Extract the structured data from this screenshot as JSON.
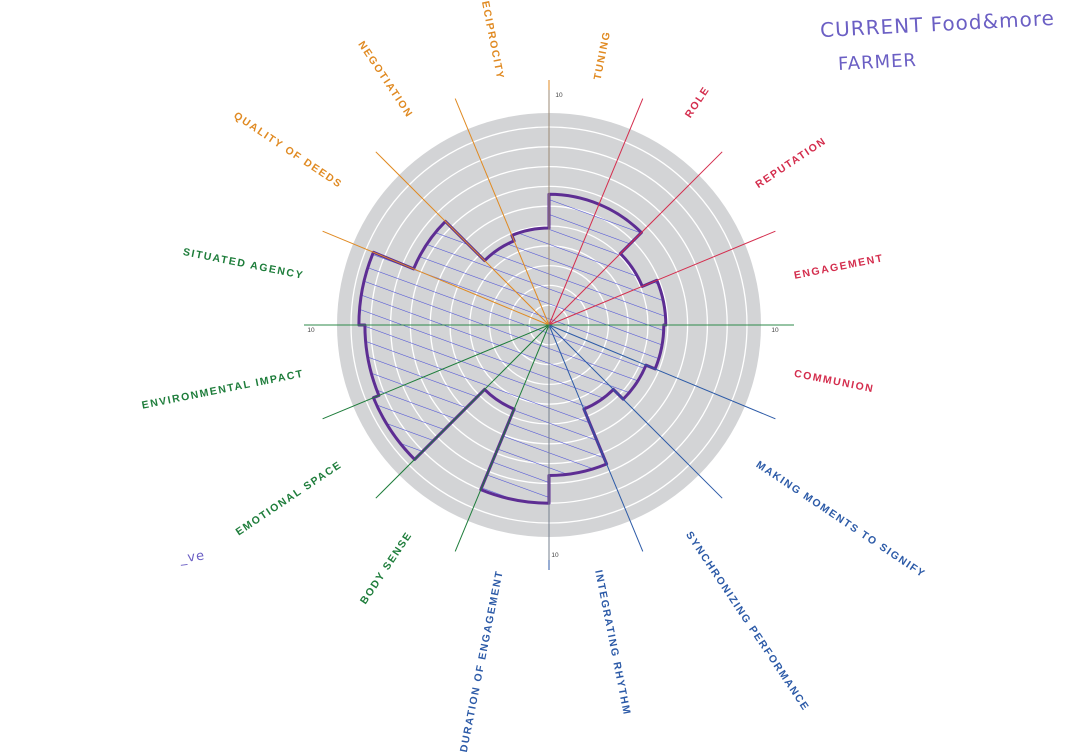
{
  "handwritten": {
    "title_line1": "CURRENT Food&more",
    "title_line2": "FARMER",
    "side_note": "_ve"
  },
  "wheel": {
    "scale_max": 10,
    "scale_label": "10",
    "colors": {
      "disc": "#d3d4d6",
      "ring": "#ffffff",
      "outline": "#5d2d93",
      "hatch": "#4b4fd6",
      "orange": "#e08a22",
      "red": "#d42d4d",
      "blue": "#2c5aa7",
      "green": "#1e7d3b"
    },
    "dimensions": [
      {
        "label": "TUNING",
        "color": "orange",
        "score": 6.6
      },
      {
        "label": "ROLE",
        "color": "red",
        "score": 6.6
      },
      {
        "label": "REPUTATION",
        "color": "red",
        "score": 5.1
      },
      {
        "label": "ENGAGEMENT",
        "color": "red",
        "score": 5.9
      },
      {
        "label": "COMMUNION",
        "color": "red",
        "score": 5.8
      },
      {
        "label": "MAKING MOMENTS TO SIGNIFY",
        "color": "blue",
        "score": 5.3
      },
      {
        "label": "SYNCHRONIZING PERFORMANCE",
        "color": "blue",
        "score": 4.6
      },
      {
        "label": "INTEGRATING RHYTHM",
        "color": "blue",
        "score": 7.6
      },
      {
        "label": "DURATION OF ENGAGEMENT",
        "color": "blue",
        "score": 9.0
      },
      {
        "label": "BODY SENSE",
        "color": "green",
        "score": 4.6
      },
      {
        "label": "EMOTIONAL SPACE",
        "color": "green",
        "score": 9.6
      },
      {
        "label": "ENVIRONMENTAL IMPACT",
        "color": "green",
        "score": 9.3
      },
      {
        "label": "SITUATED AGENCY",
        "color": "green",
        "score": 9.6
      },
      {
        "label": "QUALITY OF DEEDS",
        "color": "orange",
        "score": 7.4
      },
      {
        "label": "NEGOTIATION",
        "color": "orange",
        "score": 4.6
      },
      {
        "label": "RECIPROCITY",
        "color": "orange",
        "score": 4.9
      }
    ]
  }
}
